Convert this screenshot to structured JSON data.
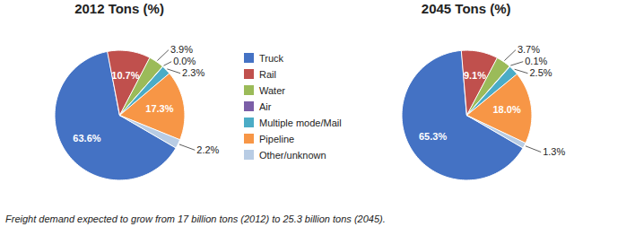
{
  "chart_data": [
    {
      "type": "pie",
      "title": "2012 Tons (%)",
      "categories": [
        "Truck",
        "Rail",
        "Water",
        "Air",
        "Multiple mode/Mail",
        "Pipeline",
        "Other/unknown"
      ],
      "values": [
        63.6,
        10.7,
        3.9,
        0.0,
        2.3,
        17.3,
        2.2
      ],
      "value_labels": [
        "63.6%",
        "10.7%",
        "3.9%",
        "0.0%",
        "2.3%",
        "17.3%",
        "2.2%"
      ],
      "colors": [
        "#4472C4",
        "#C0504D",
        "#9BBB59",
        "#7B5EA7",
        "#4BACC6",
        "#F79646",
        "#B8CCE4"
      ],
      "data_labels": true,
      "legend": "right"
    },
    {
      "type": "pie",
      "title": "2045 Tons (%)",
      "categories": [
        "Truck",
        "Rail",
        "Water",
        "Air",
        "Multiple mode/Mail",
        "Pipeline",
        "Other/unknown"
      ],
      "values": [
        65.3,
        9.1,
        3.7,
        0.1,
        2.5,
        18.0,
        1.3
      ],
      "value_labels": [
        "65.3%",
        "9.1%",
        "3.7%",
        "0.1%",
        "2.5%",
        "18.0%",
        "1.3%"
      ],
      "colors": [
        "#4472C4",
        "#C0504D",
        "#9BBB59",
        "#7B5EA7",
        "#4BACC6",
        "#F79646",
        "#B8CCE4"
      ],
      "data_labels": true
    }
  ],
  "caption": "Freight demand expected to grow from 17 billion tons (2012) to 25.3 billion tons (2045)."
}
